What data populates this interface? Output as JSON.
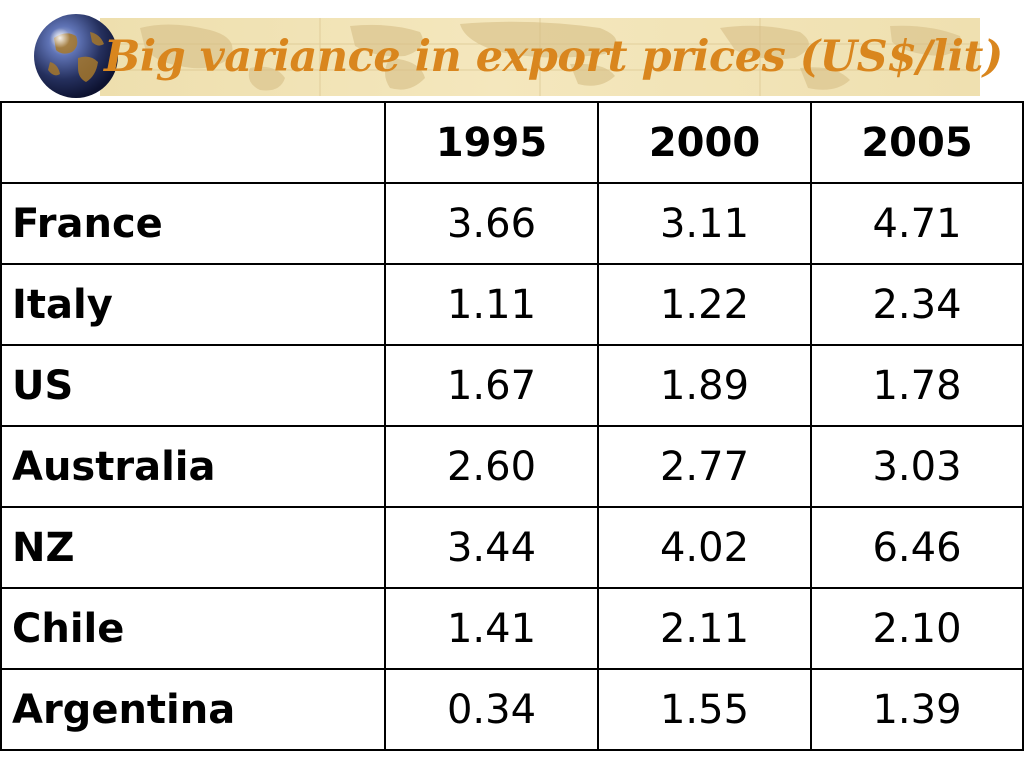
{
  "slide": {
    "title": "Big variance in export prices (US$/lit)",
    "globe_icon": "globe-icon",
    "accent_color": "#d9861e",
    "banner_color": "#eedfae"
  },
  "table": {
    "corner_label": "",
    "columns": [
      "1995",
      "2000",
      "2005"
    ],
    "rows": [
      {
        "country": "France",
        "values": [
          "3.66",
          "3.11",
          "4.71"
        ]
      },
      {
        "country": "Italy",
        "values": [
          "1.11",
          "1.22",
          "2.34"
        ]
      },
      {
        "country": "US",
        "values": [
          "1.67",
          "1.89",
          "1.78"
        ]
      },
      {
        "country": "Australia",
        "values": [
          "2.60",
          "2.77",
          "3.03"
        ]
      },
      {
        "country": "NZ",
        "values": [
          "3.44",
          "4.02",
          "6.46"
        ]
      },
      {
        "country": "Chile",
        "values": [
          "1.41",
          "2.11",
          "2.10"
        ]
      },
      {
        "country": "Argentina",
        "values": [
          "0.34",
          "1.55",
          "1.39"
        ]
      }
    ]
  }
}
